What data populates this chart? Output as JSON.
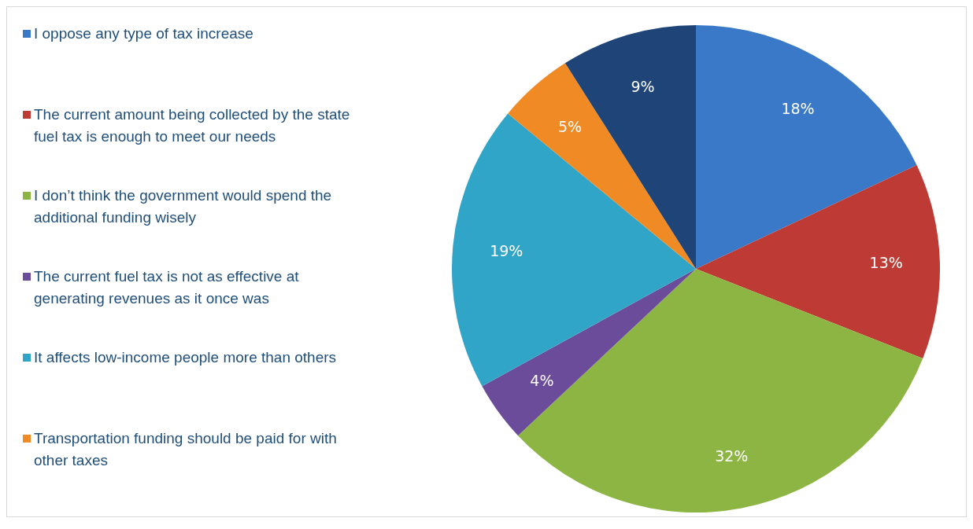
{
  "chart_data": {
    "type": "pie",
    "categories": [
      "I oppose any type of tax increase",
      "The current amount being collected by the state fuel tax is enough to meet our needs",
      "I don’t think the government would spend the additional funding wisely",
      "The current fuel tax is not as effective at generating revenues as it once was",
      "It affects low-income people more than others",
      "Transportation funding should be paid for with other taxes",
      null
    ],
    "values": [
      18,
      13,
      32,
      4,
      19,
      5,
      9
    ],
    "colors": [
      "#3a78c8",
      "#be3a34",
      "#8db543",
      "#6b4c9a",
      "#31a5c8",
      "#f08a24",
      "#1f4477"
    ],
    "value_labels": [
      "18%",
      "13%",
      "32%",
      "4%",
      "19%",
      "5%",
      "9%"
    ],
    "legend": "left"
  }
}
